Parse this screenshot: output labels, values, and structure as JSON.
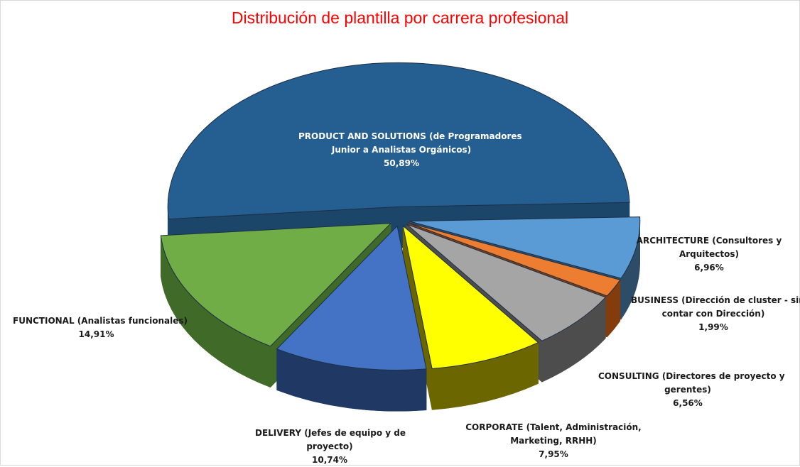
{
  "chart_data": {
    "type": "pie",
    "title": "Distribución de plantilla por carrera profesional",
    "slices": [
      {
        "line1": "PRODUCT AND SOLUTIONS (de Programadores",
        "line2": "Junior a Analistas Orgánicos)",
        "value_label": "50,89%",
        "value": 50.89,
        "color": "#255E91",
        "side": "#1B4569"
      },
      {
        "line1": "ARCHITECTURE (Consultores y",
        "line2": "Arquitectos)",
        "value_label": "6,96%",
        "value": 6.96,
        "color": "#5B9BD5",
        "side": "#2D4C68"
      },
      {
        "line1": "BUSINESS (Dirección de cluster - sin",
        "line2": "contar con Dirección)",
        "value_label": "1,99%",
        "value": 1.99,
        "color": "#ED7D31",
        "side": "#843C0C"
      },
      {
        "line1": "CONSULTING (Directores de proyecto y",
        "line2": "gerentes)",
        "value_label": "6,56%",
        "value": 6.56,
        "color": "#A5A5A5",
        "side": "#4D4D4D"
      },
      {
        "line1": "CORPORATE  (Talent, Administración,",
        "line2": "Marketing, RRHH)",
        "value_label": "7,95%",
        "value": 7.95,
        "color": "#FFFF00",
        "side": "#6B6600"
      },
      {
        "line1": "DELIVERY (Jefes de equipo y de",
        "line2": "proyecto)",
        "value_label": "10,74%",
        "value": 10.74,
        "color": "#4472C4",
        "side": "#1F3864"
      },
      {
        "line1": "FUNCTIONAL (Analistas funcionales)",
        "line2": "",
        "value_label": "14,91%",
        "value": 14.91,
        "color": "#70AD47",
        "side": "#3F6A27"
      }
    ],
    "explode": "all slices separated",
    "style": "3D exploded pie",
    "legend": "none (data labels)"
  }
}
